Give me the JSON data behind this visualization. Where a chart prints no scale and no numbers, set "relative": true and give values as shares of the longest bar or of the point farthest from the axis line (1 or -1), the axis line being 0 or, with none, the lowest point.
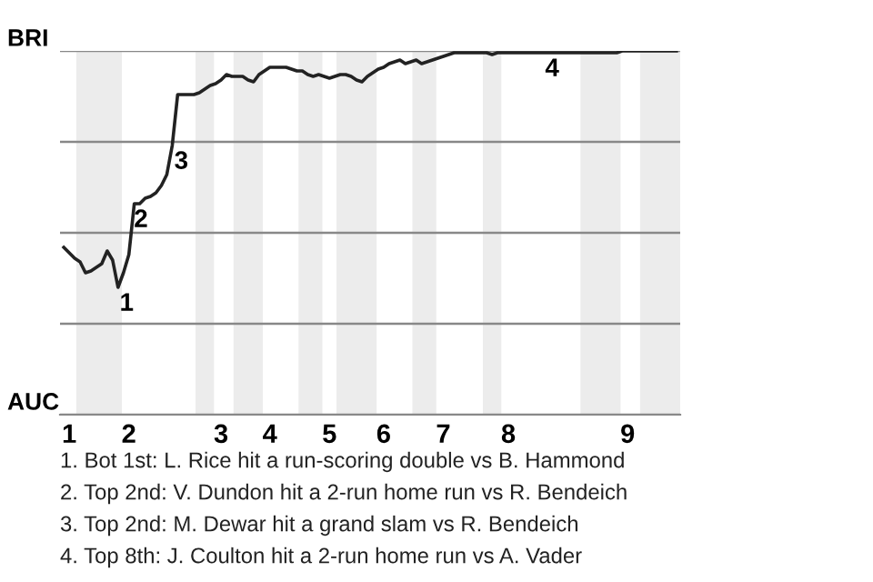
{
  "chart_data": {
    "type": "line",
    "relative": true,
    "categories": [
      null,
      "1",
      null,
      null,
      null,
      null,
      null,
      null,
      null,
      null,
      null,
      null,
      "2",
      null,
      null,
      null,
      null,
      null,
      null,
      null,
      null,
      null,
      null,
      null,
      null,
      null,
      null,
      null,
      null,
      "3",
      null,
      null,
      null,
      null,
      null,
      null,
      null,
      null,
      "4",
      null,
      null,
      null,
      null,
      null,
      null,
      null,
      null,
      null,
      null,
      "5",
      null,
      null,
      null,
      null,
      null,
      null,
      null,
      null,
      null,
      "6",
      null,
      null,
      null,
      null,
      null,
      null,
      null,
      null,
      null,
      null,
      "7",
      null,
      null,
      null,
      null,
      null,
      null,
      null,
      null,
      null,
      null,
      null,
      "8",
      null,
      null,
      null,
      null,
      null,
      null,
      null,
      null,
      null,
      null,
      null,
      null,
      null,
      null,
      null,
      null,
      null,
      null,
      null,
      null,
      null,
      "9",
      null,
      null,
      null,
      null,
      null,
      null,
      null,
      null,
      null
    ],
    "series": [
      {
        "color": "#222222",
        "values": [
          0.46,
          0.445,
          0.43,
          0.42,
          0.39,
          0.395,
          0.405,
          0.415,
          0.45,
          0.425,
          0.35,
          0.39,
          0.44,
          0.58,
          0.58,
          0.595,
          0.6,
          0.61,
          0.63,
          0.66,
          0.74,
          0.88,
          0.88,
          0.88,
          0.88,
          0.885,
          0.895,
          0.905,
          0.91,
          0.92,
          0.935,
          0.93,
          0.93,
          0.93,
          0.92,
          0.915,
          0.935,
          0.945,
          0.955,
          0.955,
          0.955,
          0.955,
          0.95,
          0.945,
          0.945,
          0.935,
          0.93,
          0.935,
          0.93,
          0.925,
          0.93,
          0.935,
          0.935,
          0.93,
          0.92,
          0.915,
          0.93,
          0.94,
          0.95,
          0.955,
          0.965,
          0.97,
          0.975,
          0.965,
          0.97,
          0.975,
          0.965,
          0.97,
          0.975,
          0.98,
          0.985,
          0.99,
          0.995,
          0.995,
          0.995,
          0.995,
          0.995,
          0.995,
          0.995,
          0.99,
          0.995,
          0.995,
          0.995,
          0.995,
          0.995,
          0.995,
          0.995,
          0.995,
          0.995,
          0.995,
          0.995,
          0.995,
          0.995,
          0.995,
          0.995,
          0.995,
          0.995,
          0.995,
          0.995,
          0.995,
          0.995,
          0.995,
          0.995,
          1,
          1,
          1,
          1,
          1,
          1,
          1,
          1,
          1,
          1,
          1
        ],
        "name": null
      }
    ],
    "grid": "y",
    "legend": false,
    "marker": "none",
    "line_style": "solid",
    "annotations": [
      "BRI",
      "AUC",
      {
        "text": "1",
        "y": 0.35
      },
      {
        "text": "2",
        "y": 0.58
      },
      {
        "text": "3",
        "y": 0.74
      },
      {
        "text": "4",
        "y": 0.995
      },
      "1. Bot 1st: L. Rice hit a run-scoring double vs B. Hammond",
      "2. Top 2nd: V. Dundon hit a 2-run home run vs R. Bendeich",
      "3. Top 2nd: M. Dewar hit a grand slam vs R. Bendeich",
      "4. Top 8th: J. Coulton hit a 2-run home run vs A. Vader"
    ]
  }
}
